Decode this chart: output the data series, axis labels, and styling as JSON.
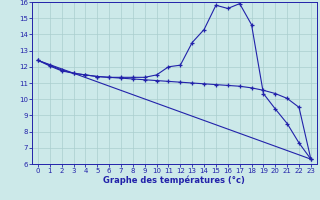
{
  "xlabel": "Graphe des températures (°c)",
  "xlim": [
    -0.5,
    23.5
  ],
  "ylim": [
    6,
    16
  ],
  "yticks": [
    6,
    7,
    8,
    9,
    10,
    11,
    12,
    13,
    14,
    15,
    16
  ],
  "xticks": [
    0,
    1,
    2,
    3,
    4,
    5,
    6,
    7,
    8,
    9,
    10,
    11,
    12,
    13,
    14,
    15,
    16,
    17,
    18,
    19,
    20,
    21,
    22,
    23
  ],
  "bg_color": "#cce9e9",
  "grid_color": "#aacece",
  "line_color": "#2222aa",
  "line1_x": [
    0,
    1,
    2,
    3,
    4,
    5,
    6,
    7,
    8,
    9,
    10,
    11,
    12,
    13,
    14,
    15,
    16,
    17,
    18,
    19,
    20,
    21,
    22,
    23
  ],
  "line1_y": [
    12.4,
    12.1,
    11.8,
    11.6,
    11.5,
    11.4,
    11.35,
    11.35,
    11.35,
    11.35,
    11.5,
    12.0,
    12.1,
    13.5,
    14.3,
    15.8,
    15.6,
    15.9,
    14.6,
    10.35,
    9.4,
    8.5,
    7.3,
    6.3
  ],
  "line2_x": [
    0,
    1,
    2,
    3,
    4,
    5,
    6,
    7,
    8,
    9,
    10,
    11,
    12,
    13,
    14,
    15,
    16,
    17,
    18,
    19,
    20,
    21,
    22,
    23
  ],
  "line2_y": [
    12.4,
    12.05,
    11.75,
    11.6,
    11.5,
    11.4,
    11.35,
    11.3,
    11.25,
    11.2,
    11.15,
    11.1,
    11.05,
    11.0,
    10.95,
    10.9,
    10.85,
    10.8,
    10.7,
    10.55,
    10.35,
    10.05,
    9.5,
    6.3
  ],
  "line3_x": [
    0,
    23
  ],
  "line3_y": [
    12.4,
    6.3
  ]
}
